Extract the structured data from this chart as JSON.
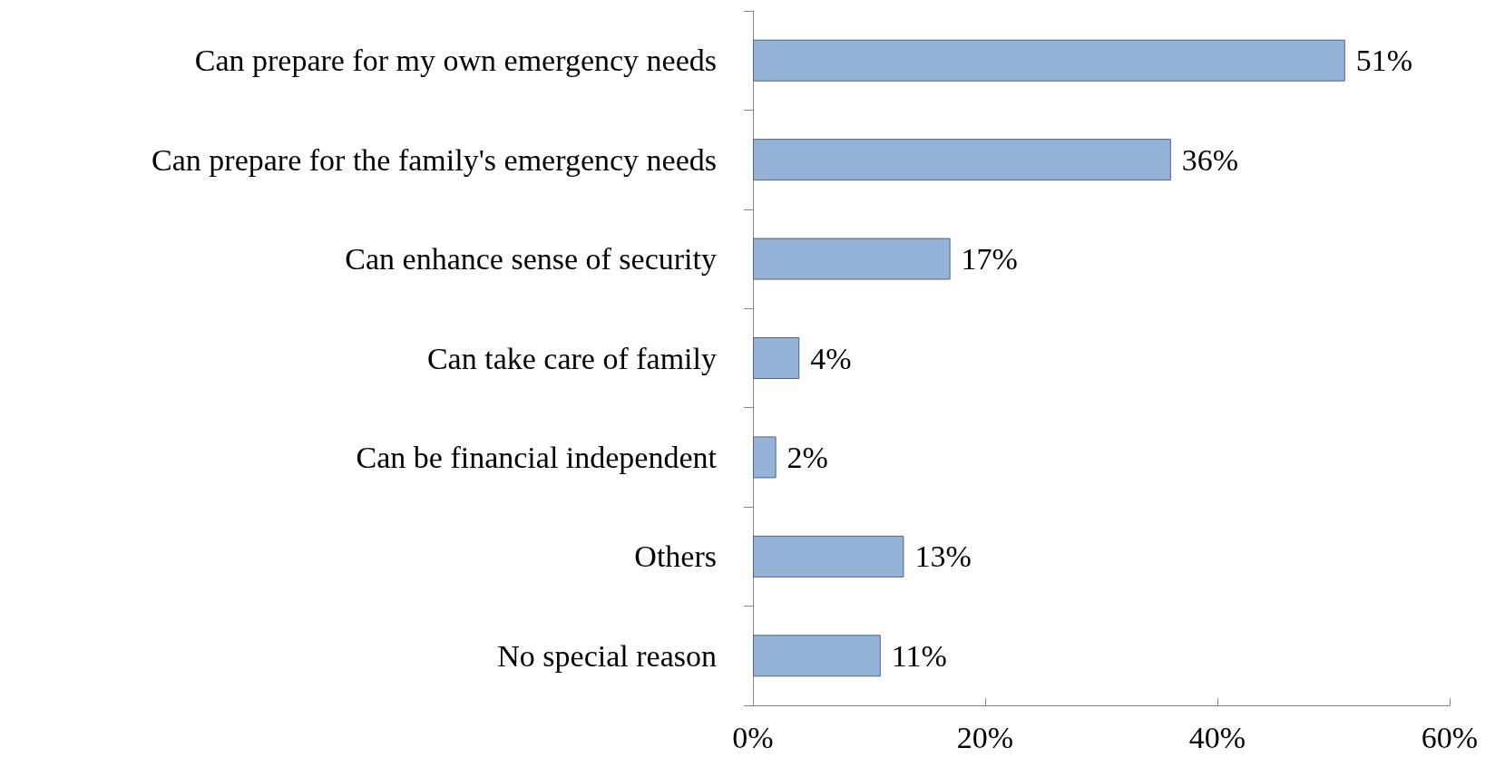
{
  "chart_data": {
    "type": "bar",
    "orientation": "horizontal",
    "categories": [
      "Can prepare for my own emergency needs",
      "Can prepare for the family's emergency needs",
      "Can enhance sense of security",
      "Can take care of family",
      "Can be financial independent",
      "Others",
      "No special reason"
    ],
    "values": [
      51,
      36,
      17,
      4,
      2,
      13,
      11
    ],
    "color": "#95b3d7",
    "value_labels": [
      "51%",
      "36%",
      "17%",
      "4%",
      "2%",
      "13%",
      "11%"
    ],
    "xlim": [
      0,
      60
    ],
    "xticks": [
      {
        "value": 0,
        "label": "0%"
      },
      {
        "value": 20,
        "label": "20%"
      },
      {
        "value": 40,
        "label": "40%"
      },
      {
        "value": 60,
        "label": "60%"
      }
    ],
    "grid": false
  }
}
